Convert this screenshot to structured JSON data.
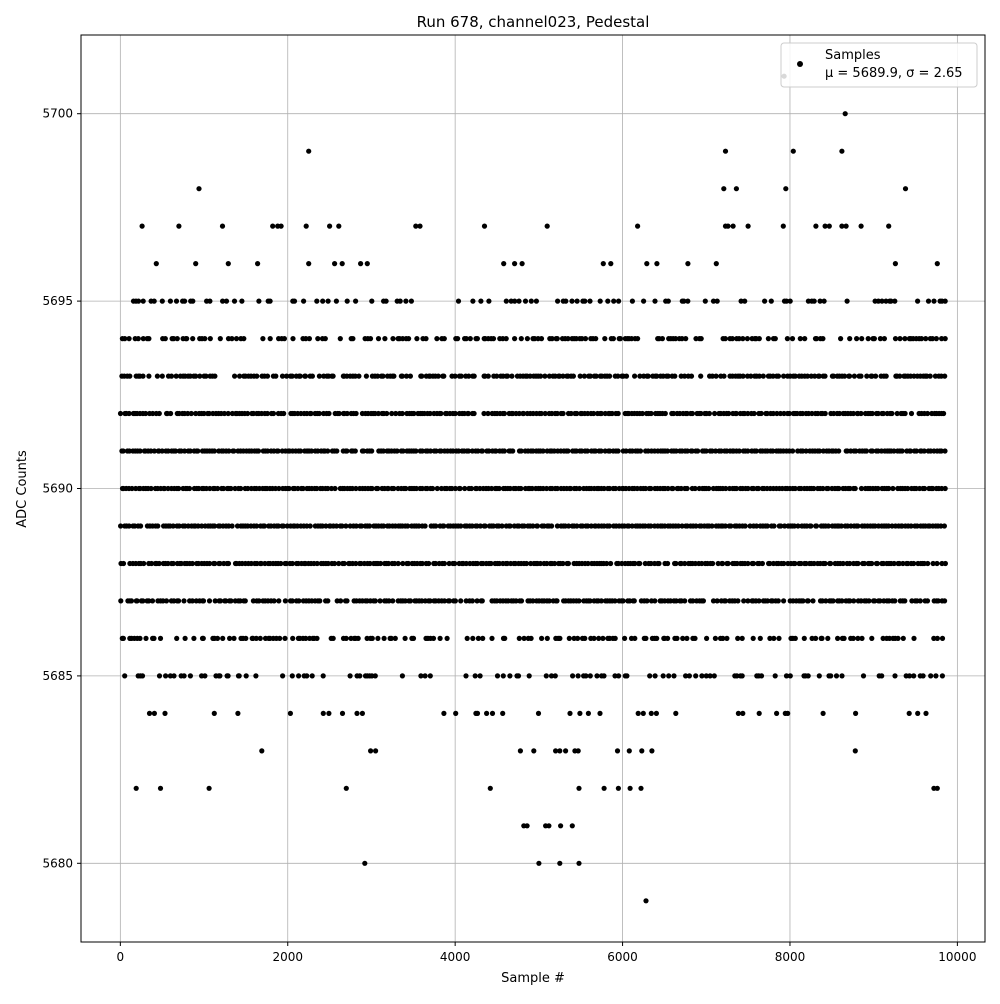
{
  "chart_data": {
    "type": "scatter",
    "title": "Run 678, channel023, Pedestal",
    "xlabel": "Sample #",
    "ylabel": "ADC Counts",
    "xlim": [
      -470,
      10330
    ],
    "ylim": [
      5677.9,
      5702.1
    ],
    "xticks": [
      0,
      2000,
      4000,
      6000,
      8000,
      10000
    ],
    "xtick_labels": [
      "0",
      "2000",
      "4000",
      "6000",
      "8000",
      "10000"
    ],
    "yticks": [
      5680,
      5685,
      5690,
      5695,
      5700
    ],
    "ytick_labels": [
      "5680",
      "5685",
      "5690",
      "5695",
      "5700"
    ],
    "grid": true,
    "legend_position": "top-right",
    "marker_color": "#000000",
    "series": [
      {
        "name": "Samples",
        "stats_label": "μ = 5689.9, σ = 2.65",
        "mean": 5689.9,
        "sigma": 2.65,
        "x_range": [
          0,
          9850
        ],
        "dense_levels": [
          5684,
          5685,
          5686,
          5687,
          5688,
          5689,
          5690,
          5691,
          5692,
          5693,
          5694,
          5695
        ],
        "points": [
          [
            5000,
            5680
          ],
          [
            5250,
            5680
          ],
          [
            5480,
            5680
          ],
          [
            2920,
            5680
          ],
          [
            6280,
            5679
          ],
          [
            4820,
            5681
          ],
          [
            4860,
            5681
          ],
          [
            5080,
            5681
          ],
          [
            5120,
            5681
          ],
          [
            5260,
            5681
          ],
          [
            5400,
            5681
          ],
          [
            190,
            5682
          ],
          [
            480,
            5682
          ],
          [
            1060,
            5682
          ],
          [
            2700,
            5682
          ],
          [
            4420,
            5682
          ],
          [
            5480,
            5682
          ],
          [
            5780,
            5682
          ],
          [
            5950,
            5682
          ],
          [
            6090,
            5682
          ],
          [
            6220,
            5682
          ],
          [
            9720,
            5682
          ],
          [
            9760,
            5682
          ],
          [
            1690,
            5683
          ],
          [
            2990,
            5683
          ],
          [
            3050,
            5683
          ],
          [
            4780,
            5683
          ],
          [
            4940,
            5683
          ],
          [
            5200,
            5683
          ],
          [
            5250,
            5683
          ],
          [
            5320,
            5683
          ],
          [
            5430,
            5683
          ],
          [
            5470,
            5683
          ],
          [
            5940,
            5683
          ],
          [
            6080,
            5683
          ],
          [
            6230,
            5683
          ],
          [
            6350,
            5683
          ],
          [
            8780,
            5683
          ],
          [
            260,
            5697
          ],
          [
            430,
            5696
          ],
          [
            700,
            5697
          ],
          [
            900,
            5696
          ],
          [
            1220,
            5697
          ],
          [
            1290,
            5696
          ],
          [
            1640,
            5696
          ],
          [
            1820,
            5697
          ],
          [
            1880,
            5697
          ],
          [
            1920,
            5697
          ],
          [
            2220,
            5697
          ],
          [
            2250,
            5696
          ],
          [
            2500,
            5697
          ],
          [
            2560,
            5696
          ],
          [
            2610,
            5697
          ],
          [
            2650,
            5696
          ],
          [
            2870,
            5696
          ],
          [
            2950,
            5696
          ],
          [
            3530,
            5697
          ],
          [
            3580,
            5697
          ],
          [
            4350,
            5697
          ],
          [
            4580,
            5696
          ],
          [
            4710,
            5696
          ],
          [
            4800,
            5696
          ],
          [
            5100,
            5697
          ],
          [
            5770,
            5696
          ],
          [
            5860,
            5696
          ],
          [
            6180,
            5697
          ],
          [
            6290,
            5696
          ],
          [
            6410,
            5696
          ],
          [
            6780,
            5696
          ],
          [
            7120,
            5696
          ],
          [
            7230,
            5697
          ],
          [
            7260,
            5697
          ],
          [
            7320,
            5697
          ],
          [
            7500,
            5697
          ],
          [
            7920,
            5697
          ],
          [
            8310,
            5697
          ],
          [
            8420,
            5697
          ],
          [
            8470,
            5697
          ],
          [
            8620,
            5697
          ],
          [
            8670,
            5697
          ],
          [
            8850,
            5697
          ],
          [
            9180,
            5697
          ],
          [
            9260,
            5696
          ],
          [
            9760,
            5696
          ],
          [
            940,
            5698
          ],
          [
            7210,
            5698
          ],
          [
            7360,
            5698
          ],
          [
            7950,
            5698
          ],
          [
            9380,
            5698
          ],
          [
            2250,
            5699
          ],
          [
            7230,
            5699
          ],
          [
            8040,
            5699
          ],
          [
            8620,
            5699
          ],
          [
            8660,
            5700
          ],
          [
            7930,
            5701
          ]
        ]
      }
    ]
  }
}
